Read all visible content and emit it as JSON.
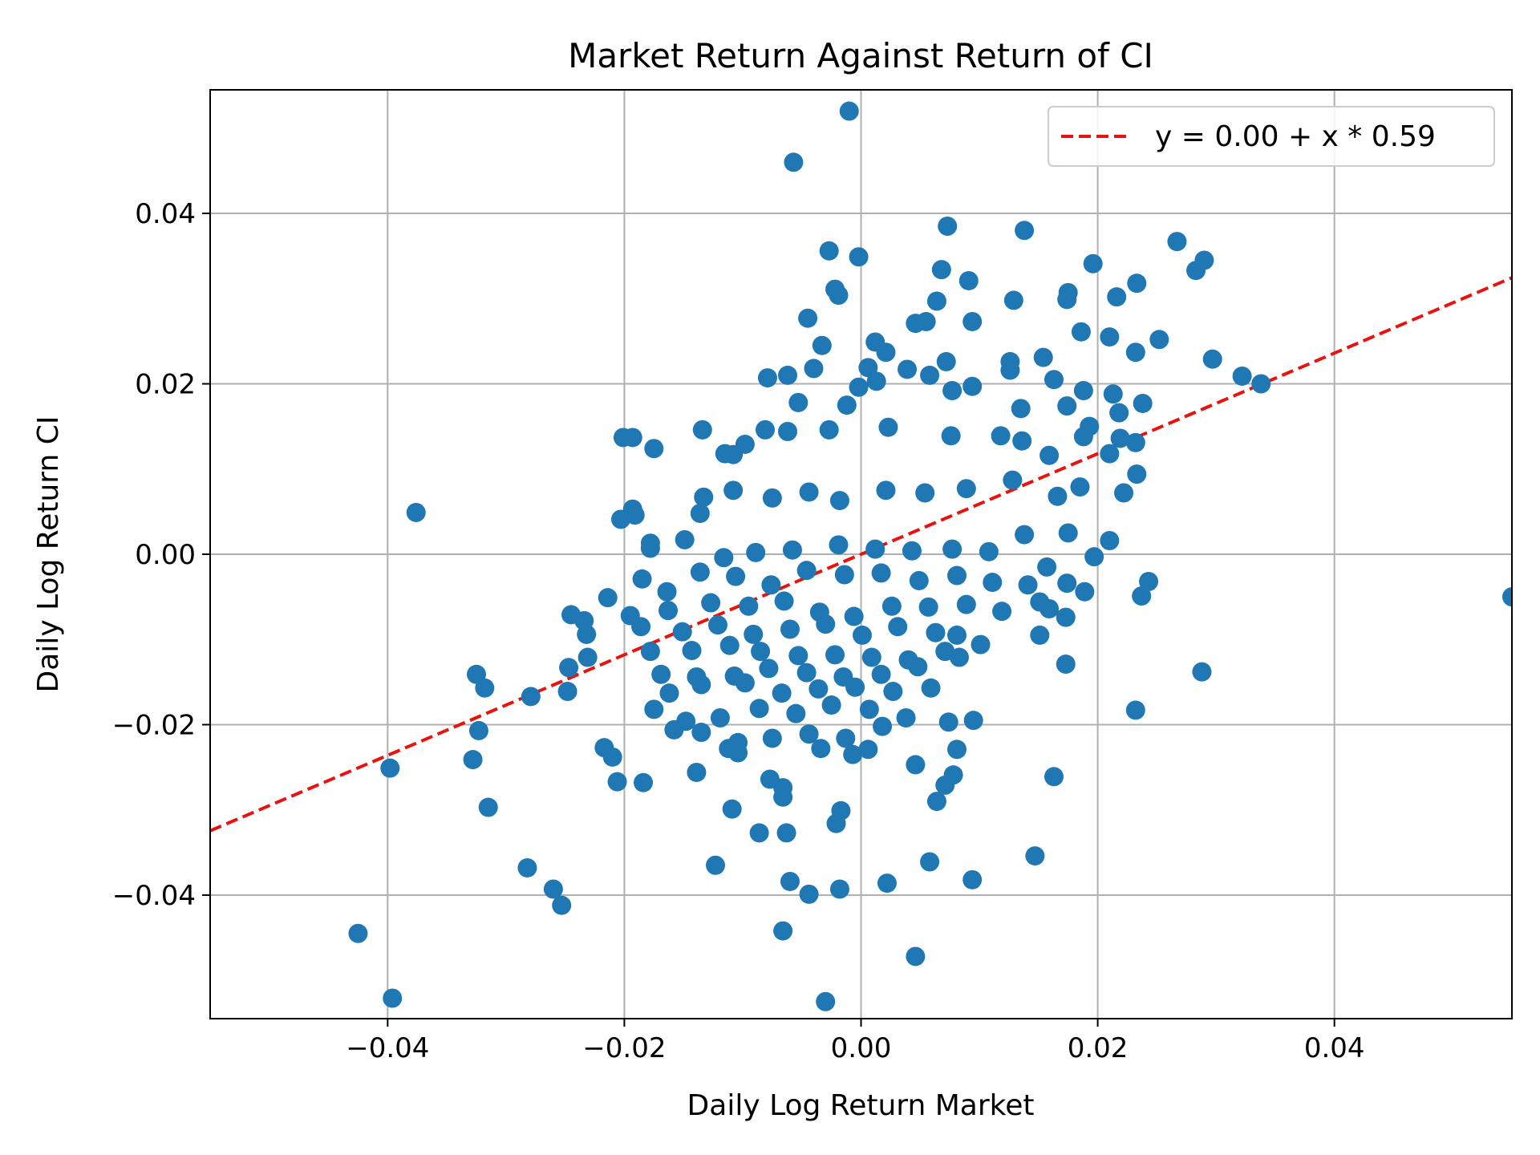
{
  "chart_data": {
    "type": "scatter",
    "title": "Market Return Against Return of CI",
    "xlabel": "Daily Log Return Market",
    "ylabel": "Daily Log Return CI",
    "xlim": [
      -0.055,
      0.055
    ],
    "ylim": [
      -0.0545,
      0.0545
    ],
    "xticks": [
      -0.04,
      -0.02,
      0.0,
      0.02,
      0.04
    ],
    "xtick_labels": [
      "−0.04",
      "−0.02",
      "0.00",
      "0.02",
      "0.04"
    ],
    "yticks": [
      -0.04,
      -0.02,
      0.0,
      0.02,
      0.04
    ],
    "ytick_labels": [
      "−0.04",
      "−0.02",
      "0.00",
      "0.02",
      "0.04"
    ],
    "grid": true,
    "legend_position": "top-right",
    "colors": {
      "points": "#1f77b4",
      "fit_line": "#e8130f",
      "grid": "#b0b0b0"
    },
    "fit_line": {
      "label": "y = 0.00 + x * 0.59",
      "intercept": 0.0,
      "slope": 0.59,
      "style": "dashed"
    },
    "points": [
      [
        -0.001,
        0.052
      ],
      [
        -0.0057,
        0.046
      ],
      [
        0.0073,
        0.0385
      ],
      [
        0.0138,
        0.038
      ],
      [
        0.0267,
        0.0367
      ],
      [
        0.029,
        0.0345
      ],
      [
        0.0283,
        0.0333
      ],
      [
        0.0196,
        0.0341
      ],
      [
        -0.0027,
        0.0356
      ],
      [
        -0.0002,
        0.0349
      ],
      [
        0.0068,
        0.0334
      ],
      [
        0.0091,
        0.0321
      ],
      [
        0.0233,
        0.0318
      ],
      [
        0.0175,
        0.0307
      ],
      [
        0.0174,
        0.0299
      ],
      [
        0.0216,
        0.0302
      ],
      [
        0.0129,
        0.0298
      ],
      [
        0.0064,
        0.0297
      ],
      [
        -0.0022,
        0.0311
      ],
      [
        -0.0019,
        0.0304
      ],
      [
        -0.0045,
        0.0277
      ],
      [
        0.0055,
        0.0273
      ],
      [
        0.0046,
        0.0271
      ],
      [
        0.0094,
        0.0273
      ],
      [
        0.0186,
        0.0261
      ],
      [
        0.021,
        0.0255
      ],
      [
        0.0252,
        0.0252
      ],
      [
        -0.0033,
        0.0245
      ],
      [
        0.0012,
        0.0249
      ],
      [
        0.0021,
        0.0237
      ],
      [
        0.0232,
        0.0237
      ],
      [
        0.0297,
        0.0229
      ],
      [
        0.0154,
        0.0231
      ],
      [
        0.0126,
        0.0226
      ],
      [
        0.0072,
        0.0226
      ],
      [
        -0.0079,
        0.0207
      ],
      [
        -0.0062,
        0.021
      ],
      [
        -0.004,
        0.0218
      ],
      [
        0.0006,
        0.0219
      ],
      [
        0.0039,
        0.0217
      ],
      [
        0.0058,
        0.021
      ],
      [
        0.0126,
        0.0216
      ],
      [
        0.0163,
        0.0205
      ],
      [
        0.0322,
        0.0209
      ],
      [
        0.0338,
        0.02
      ],
      [
        0.0188,
        0.0192
      ],
      [
        0.0213,
        0.0188
      ],
      [
        0.0238,
        0.0177
      ],
      [
        0.0218,
        0.0166
      ],
      [
        0.0193,
        0.015
      ],
      [
        0.0174,
        0.0174
      ],
      [
        0.0135,
        0.0171
      ],
      [
        0.0094,
        0.0197
      ],
      [
        0.0077,
        0.0192
      ],
      [
        -0.0002,
        0.0196
      ],
      [
        0.0013,
        0.0203
      ],
      [
        -0.0053,
        0.0178
      ],
      [
        -0.0012,
        0.0175
      ],
      [
        -0.0201,
        0.0137
      ],
      [
        -0.0193,
        0.0137
      ],
      [
        -0.0175,
        0.0124
      ],
      [
        -0.0134,
        0.0146
      ],
      [
        -0.0098,
        0.0129
      ],
      [
        -0.0108,
        0.0117
      ],
      [
        -0.0115,
        0.0118
      ],
      [
        -0.0081,
        0.0146
      ],
      [
        -0.0062,
        0.0144
      ],
      [
        -0.0027,
        0.0146
      ],
      [
        0.0023,
        0.0149
      ],
      [
        0.0076,
        0.0139
      ],
      [
        0.0118,
        0.0139
      ],
      [
        0.0188,
        0.0138
      ],
      [
        0.0219,
        0.0136
      ],
      [
        0.0232,
        0.0131
      ],
      [
        0.021,
        0.0118
      ],
      [
        0.0159,
        0.0116
      ],
      [
        0.0136,
        0.0133
      ],
      [
        -0.0193,
        0.0053
      ],
      [
        -0.0191,
        0.0046
      ],
      [
        -0.0203,
        0.0041
      ],
      [
        -0.0136,
        0.0048
      ],
      [
        -0.0133,
        0.0067
      ],
      [
        -0.0108,
        0.0075
      ],
      [
        -0.0075,
        0.0066
      ],
      [
        -0.0044,
        0.0073
      ],
      [
        -0.0018,
        0.0063
      ],
      [
        0.0021,
        0.0075
      ],
      [
        0.0054,
        0.0072
      ],
      [
        0.0089,
        0.0077
      ],
      [
        0.0128,
        0.0087
      ],
      [
        0.0166,
        0.0068
      ],
      [
        0.0185,
        0.0079
      ],
      [
        0.0222,
        0.0072
      ],
      [
        0.0233,
        0.0094
      ],
      [
        -0.0376,
        0.0049
      ],
      [
        -0.0178,
        0.0013
      ],
      [
        -0.0178,
        0.0007
      ],
      [
        -0.0149,
        0.0017
      ],
      [
        -0.0116,
        -0.0004
      ],
      [
        -0.0089,
        0.0002
      ],
      [
        -0.0058,
        0.0005
      ],
      [
        -0.0019,
        0.0011
      ],
      [
        0.0012,
        0.0006
      ],
      [
        0.0043,
        0.0004
      ],
      [
        0.0077,
        0.0006
      ],
      [
        0.0108,
        0.0003
      ],
      [
        0.0138,
        0.0023
      ],
      [
        0.0175,
        0.0025
      ],
      [
        0.0197,
        -0.0003
      ],
      [
        0.021,
        0.0016
      ],
      [
        -0.0185,
        -0.0029
      ],
      [
        -0.0164,
        -0.0044
      ],
      [
        -0.0136,
        -0.0021
      ],
      [
        -0.0106,
        -0.0026
      ],
      [
        -0.0076,
        -0.0036
      ],
      [
        -0.0046,
        -0.0019
      ],
      [
        -0.0014,
        -0.0024
      ],
      [
        0.0017,
        -0.0022
      ],
      [
        0.0049,
        -0.0031
      ],
      [
        0.0081,
        -0.0025
      ],
      [
        0.0111,
        -0.0033
      ],
      [
        0.0141,
        -0.0036
      ],
      [
        0.0157,
        -0.0015
      ],
      [
        0.0174,
        -0.0034
      ],
      [
        0.0189,
        -0.0044
      ],
      [
        0.0237,
        -0.0049
      ],
      [
        0.0243,
        -0.0032
      ],
      [
        0.055,
        -0.005
      ],
      [
        -0.0214,
        -0.0051
      ],
      [
        -0.0245,
        -0.0071
      ],
      [
        -0.0234,
        -0.0078
      ],
      [
        -0.0195,
        -0.0072
      ],
      [
        -0.0163,
        -0.0066
      ],
      [
        -0.0127,
        -0.0057
      ],
      [
        -0.0095,
        -0.0061
      ],
      [
        -0.0065,
        -0.0055
      ],
      [
        -0.0035,
        -0.0068
      ],
      [
        -0.0006,
        -0.0073
      ],
      [
        0.0026,
        -0.0061
      ],
      [
        0.0057,
        -0.0062
      ],
      [
        0.0089,
        -0.0059
      ],
      [
        0.0119,
        -0.0067
      ],
      [
        0.0151,
        -0.0056
      ],
      [
        0.0159,
        -0.0064
      ],
      [
        0.0173,
        -0.0074
      ],
      [
        -0.0232,
        -0.0094
      ],
      [
        -0.0186,
        -0.0085
      ],
      [
        -0.0151,
        -0.0091
      ],
      [
        -0.0121,
        -0.0083
      ],
      [
        -0.0091,
        -0.0094
      ],
      [
        -0.006,
        -0.0088
      ],
      [
        -0.003,
        -0.0082
      ],
      [
        0.0001,
        -0.0095
      ],
      [
        0.0031,
        -0.0085
      ],
      [
        0.0063,
        -0.0092
      ],
      [
        0.0081,
        -0.0095
      ],
      [
        0.0151,
        -0.0095
      ],
      [
        -0.0231,
        -0.0121
      ],
      [
        -0.0178,
        -0.0114
      ],
      [
        -0.0143,
        -0.0113
      ],
      [
        -0.0111,
        -0.0107
      ],
      [
        -0.0085,
        -0.0114
      ],
      [
        -0.0053,
        -0.0119
      ],
      [
        -0.0022,
        -0.0118
      ],
      [
        0.0009,
        -0.0121
      ],
      [
        0.004,
        -0.0124
      ],
      [
        0.0071,
        -0.0114
      ],
      [
        0.0101,
        -0.0106
      ],
      [
        -0.0247,
        -0.0133
      ],
      [
        -0.0169,
        -0.0141
      ],
      [
        -0.0139,
        -0.0144
      ],
      [
        -0.0107,
        -0.0143
      ],
      [
        -0.0078,
        -0.0134
      ],
      [
        -0.0046,
        -0.0139
      ],
      [
        -0.0015,
        -0.0144
      ],
      [
        0.0017,
        -0.0141
      ],
      [
        0.0048,
        -0.0132
      ],
      [
        0.0083,
        -0.0121
      ],
      [
        0.0173,
        -0.0129
      ],
      [
        0.0288,
        -0.0138
      ],
      [
        -0.0325,
        -0.0141
      ],
      [
        -0.0318,
        -0.0157
      ],
      [
        -0.0279,
        -0.0167
      ],
      [
        -0.0248,
        -0.0161
      ],
      [
        -0.0162,
        -0.0163
      ],
      [
        -0.0135,
        -0.0153
      ],
      [
        -0.0098,
        -0.0151
      ],
      [
        -0.0067,
        -0.0163
      ],
      [
        -0.0036,
        -0.0158
      ],
      [
        -0.0005,
        -0.0156
      ],
      [
        0.0027,
        -0.0161
      ],
      [
        0.0059,
        -0.0157
      ],
      [
        -0.0175,
        -0.0182
      ],
      [
        -0.0148,
        -0.0196
      ],
      [
        -0.0119,
        -0.0192
      ],
      [
        -0.0086,
        -0.0181
      ],
      [
        -0.0055,
        -0.0187
      ],
      [
        -0.0025,
        -0.0177
      ],
      [
        0.0007,
        -0.0182
      ],
      [
        0.0038,
        -0.0192
      ],
      [
        0.0074,
        -0.0197
      ],
      [
        0.0095,
        -0.0195
      ],
      [
        0.0232,
        -0.0183
      ],
      [
        -0.0323,
        -0.0207
      ],
      [
        -0.0158,
        -0.0206
      ],
      [
        -0.0135,
        -0.0209
      ],
      [
        -0.0104,
        -0.0221
      ],
      [
        -0.0075,
        -0.0216
      ],
      [
        -0.0044,
        -0.0211
      ],
      [
        -0.0013,
        -0.0216
      ],
      [
        0.0018,
        -0.0202
      ],
      [
        -0.0328,
        -0.0241
      ],
      [
        -0.0217,
        -0.0227
      ],
      [
        -0.021,
        -0.0238
      ],
      [
        -0.0112,
        -0.0228
      ],
      [
        -0.0104,
        -0.0233
      ],
      [
        -0.0034,
        -0.0228
      ],
      [
        -0.0007,
        -0.0235
      ],
      [
        0.0006,
        -0.0229
      ],
      [
        0.0081,
        -0.0229
      ],
      [
        -0.0398,
        -0.0251
      ],
      [
        -0.0139,
        -0.0256
      ],
      [
        0.0046,
        -0.0247
      ],
      [
        0.0078,
        -0.0259
      ],
      [
        0.0163,
        -0.0261
      ],
      [
        -0.0206,
        -0.0267
      ],
      [
        -0.0184,
        -0.0268
      ],
      [
        -0.0077,
        -0.0264
      ],
      [
        -0.0066,
        -0.0274
      ],
      [
        0.0071,
        -0.0271
      ],
      [
        -0.0315,
        -0.0297
      ],
      [
        -0.0109,
        -0.0299
      ],
      [
        -0.0066,
        -0.0285
      ],
      [
        -0.0017,
        -0.0301
      ],
      [
        0.0064,
        -0.029
      ],
      [
        -0.0086,
        -0.0327
      ],
      [
        -0.0063,
        -0.0327
      ],
      [
        -0.0021,
        -0.0316
      ],
      [
        -0.0123,
        -0.0365
      ],
      [
        0.0058,
        -0.0361
      ],
      [
        0.0147,
        -0.0354
      ],
      [
        -0.0282,
        -0.0368
      ],
      [
        -0.026,
        -0.0393
      ],
      [
        -0.0253,
        -0.0412
      ],
      [
        -0.006,
        -0.0384
      ],
      [
        -0.0044,
        -0.0399
      ],
      [
        -0.0018,
        -0.0393
      ],
      [
        0.0022,
        -0.0386
      ],
      [
        0.0094,
        -0.0382
      ],
      [
        -0.0425,
        -0.0445
      ],
      [
        -0.0066,
        -0.0442
      ],
      [
        0.0046,
        -0.0472
      ],
      [
        -0.0396,
        -0.0521
      ],
      [
        -0.003,
        -0.0525
      ]
    ]
  }
}
